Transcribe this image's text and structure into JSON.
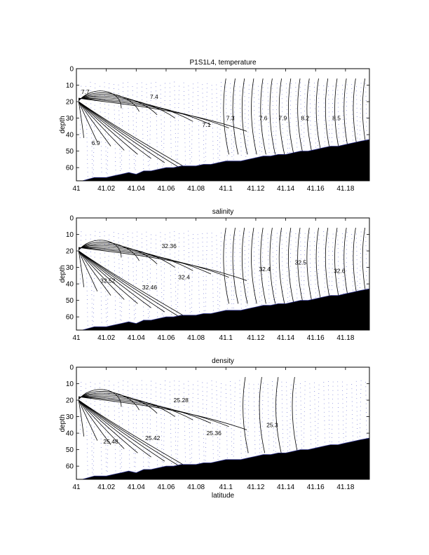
{
  "chart_data": [
    {
      "type": "contour",
      "title": "P1S1L4, temperature",
      "xlabel": "",
      "ylabel": "depth",
      "xlim": [
        41.0,
        41.196
      ],
      "ylim": [
        0,
        68
      ],
      "y_reversed": true,
      "xticks": [
        "41",
        "41.02",
        "41.04",
        "41.06",
        "41.08",
        "41.1",
        "41.12",
        "41.14",
        "41.16",
        "41.18"
      ],
      "yticks": [
        "0",
        "10",
        "20",
        "30",
        "40",
        "50",
        "60"
      ],
      "contour_labels": [
        {
          "text": "7.7",
          "x": 41.006,
          "y": 14
        },
        {
          "text": "7.4",
          "x": 41.052,
          "y": 17
        },
        {
          "text": "7.1",
          "x": 41.087,
          "y": 34
        },
        {
          "text": "7.3",
          "x": 41.103,
          "y": 30
        },
        {
          "text": "7.6",
          "x": 41.125,
          "y": 30
        },
        {
          "text": "7.9",
          "x": 41.138,
          "y": 30
        },
        {
          "text": "8.2",
          "x": 41.153,
          "y": 30
        },
        {
          "text": "8.5",
          "x": 41.174,
          "y": 30
        },
        {
          "text": "6.9",
          "x": 41.013,
          "y": 45
        }
      ],
      "bathymetry": {
        "x": [
          41.004,
          41.008,
          41.012,
          41.016,
          41.02,
          41.025,
          41.03,
          41.035,
          41.04,
          41.045,
          41.05,
          41.055,
          41.06,
          41.065,
          41.07,
          41.075,
          41.08,
          41.085,
          41.09,
          41.095,
          41.1,
          41.105,
          41.11,
          41.115,
          41.12,
          41.125,
          41.13,
          41.135,
          41.14,
          41.145,
          41.15,
          41.155,
          41.16,
          41.165,
          41.17,
          41.175,
          41.18,
          41.185,
          41.19,
          41.196
        ],
        "depth": [
          68,
          67,
          66,
          66,
          66,
          65,
          64,
          63,
          64,
          62,
          62,
          61,
          60,
          60,
          59,
          59,
          59,
          58,
          58,
          57,
          56,
          56,
          56,
          55,
          54,
          53,
          53,
          52,
          52,
          51,
          50,
          50,
          49,
          48,
          47,
          47,
          46,
          45,
          44,
          43
        ]
      }
    },
    {
      "type": "contour",
      "title": "salinity",
      "xlabel": "",
      "ylabel": "depth",
      "xlim": [
        41.0,
        41.196
      ],
      "ylim": [
        0,
        68
      ],
      "y_reversed": true,
      "xticks": [
        "41",
        "41.02",
        "41.04",
        "41.06",
        "41.08",
        "41.1",
        "41.12",
        "41.14",
        "41.16",
        "41.18"
      ],
      "yticks": [
        "0",
        "10",
        "20",
        "30",
        "40",
        "50",
        "60"
      ],
      "contour_labels": [
        {
          "text": "32.36",
          "x": 41.062,
          "y": 17
        },
        {
          "text": "32.4",
          "x": 41.072,
          "y": 36
        },
        {
          "text": "32.52",
          "x": 41.021,
          "y": 38
        },
        {
          "text": "32.46",
          "x": 41.049,
          "y": 42
        },
        {
          "text": "32.4",
          "x": 41.126,
          "y": 31
        },
        {
          "text": "32.5",
          "x": 41.15,
          "y": 27
        },
        {
          "text": "32.6",
          "x": 41.176,
          "y": 32
        }
      ],
      "bathymetry": {
        "x": [
          41.004,
          41.008,
          41.012,
          41.016,
          41.02,
          41.025,
          41.03,
          41.035,
          41.04,
          41.045,
          41.05,
          41.055,
          41.06,
          41.065,
          41.07,
          41.075,
          41.08,
          41.085,
          41.09,
          41.095,
          41.1,
          41.105,
          41.11,
          41.115,
          41.12,
          41.125,
          41.13,
          41.135,
          41.14,
          41.145,
          41.15,
          41.155,
          41.16,
          41.165,
          41.17,
          41.175,
          41.18,
          41.185,
          41.19,
          41.196
        ],
        "depth": [
          68,
          67,
          66,
          66,
          66,
          65,
          64,
          63,
          64,
          62,
          62,
          61,
          60,
          60,
          59,
          59,
          59,
          58,
          58,
          57,
          56,
          56,
          56,
          55,
          54,
          53,
          53,
          52,
          52,
          51,
          50,
          50,
          49,
          48,
          47,
          47,
          46,
          45,
          44,
          43
        ]
      }
    },
    {
      "type": "contour",
      "title": "density",
      "xlabel": "latitude",
      "ylabel": "depth",
      "xlim": [
        41.0,
        41.196
      ],
      "ylim": [
        0,
        68
      ],
      "y_reversed": true,
      "xticks": [
        "41",
        "41.02",
        "41.04",
        "41.06",
        "41.08",
        "41.1",
        "41.12",
        "41.14",
        "41.16",
        "41.18"
      ],
      "yticks": [
        "0",
        "10",
        "20",
        "30",
        "40",
        "50",
        "60"
      ],
      "contour_labels": [
        {
          "text": "25.28",
          "x": 41.07,
          "y": 20
        },
        {
          "text": "25.48",
          "x": 41.023,
          "y": 45
        },
        {
          "text": "25.42",
          "x": 41.051,
          "y": 43
        },
        {
          "text": "25.36",
          "x": 41.092,
          "y": 40
        },
        {
          "text": "25.3",
          "x": 41.131,
          "y": 35
        }
      ],
      "bathymetry": {
        "x": [
          41.004,
          41.008,
          41.012,
          41.016,
          41.02,
          41.025,
          41.03,
          41.035,
          41.04,
          41.045,
          41.05,
          41.055,
          41.06,
          41.065,
          41.07,
          41.075,
          41.08,
          41.085,
          41.09,
          41.095,
          41.1,
          41.105,
          41.11,
          41.115,
          41.12,
          41.125,
          41.13,
          41.135,
          41.14,
          41.145,
          41.15,
          41.155,
          41.16,
          41.165,
          41.17,
          41.175,
          41.18,
          41.185,
          41.19,
          41.196
        ],
        "depth": [
          68,
          67,
          66,
          66,
          66,
          65,
          64,
          63,
          64,
          62,
          62,
          61,
          60,
          60,
          59,
          59,
          59,
          58,
          58,
          57,
          56,
          56,
          56,
          55,
          54,
          53,
          53,
          52,
          52,
          51,
          50,
          50,
          49,
          48,
          47,
          47,
          46,
          45,
          44,
          43
        ]
      }
    }
  ]
}
